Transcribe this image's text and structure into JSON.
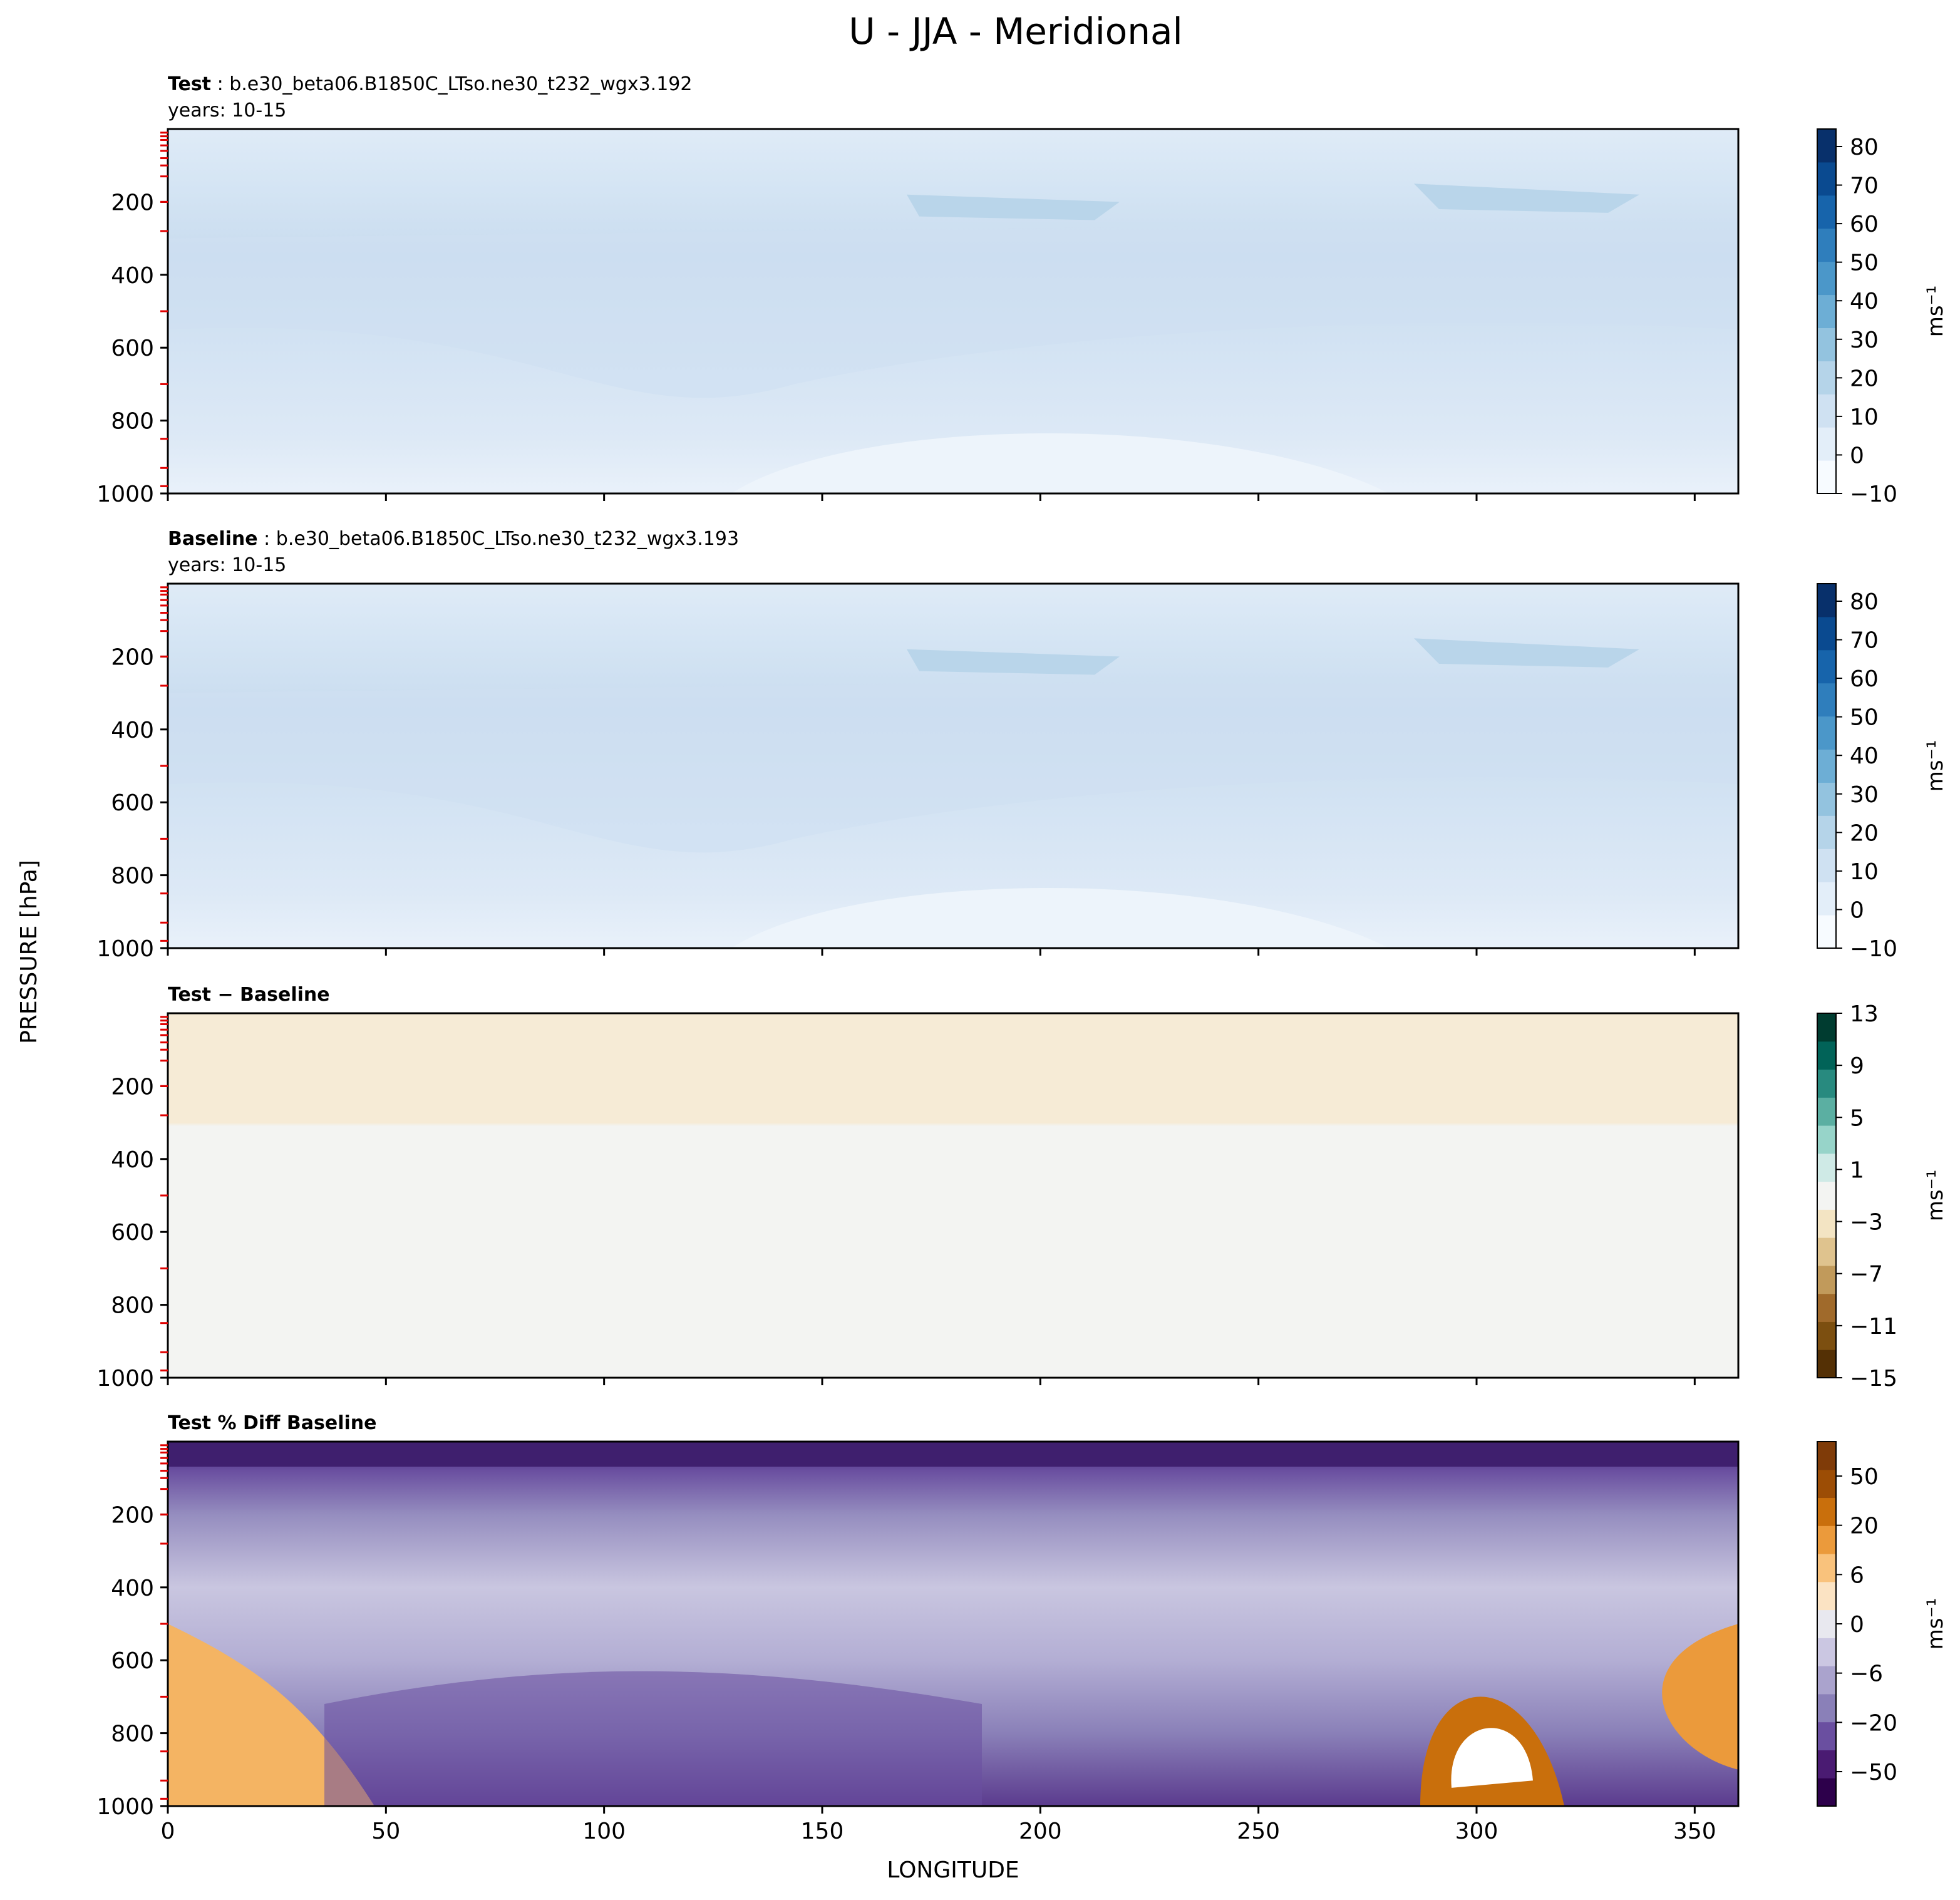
{
  "figure": {
    "title": "U - JJA - Meridional",
    "ylabel": "PRESSURE [hPa]",
    "xlabel": "LONGITUDE"
  },
  "chart_data": [
    {
      "type": "heatmap",
      "name_bold": "Test",
      "name_rest": " : b.e30_beta06.B1850C_LTso.ne30_t232_wgx3.192",
      "years": "years: 10-15",
      "xlim": [
        0,
        360
      ],
      "ylim": [
        1000,
        0
      ],
      "yticks": [
        "200",
        "400",
        "600",
        "800",
        "1000"
      ],
      "xticks": [],
      "colorbar": {
        "cmap": "Blues",
        "label": "ms⁻¹",
        "ticks": [
          "80",
          "70",
          "60",
          "50",
          "40",
          "30",
          "20",
          "10",
          "0",
          "−10"
        ]
      }
    },
    {
      "type": "heatmap",
      "name_bold": "Baseline",
      "name_rest": " : b.e30_beta06.B1850C_LTso.ne30_t232_wgx3.193",
      "years": "years: 10-15",
      "xlim": [
        0,
        360
      ],
      "ylim": [
        1000,
        0
      ],
      "yticks": [
        "200",
        "400",
        "600",
        "800",
        "1000"
      ],
      "xticks": [],
      "colorbar": {
        "cmap": "Blues",
        "label": "ms⁻¹",
        "ticks": [
          "80",
          "70",
          "60",
          "50",
          "40",
          "30",
          "20",
          "10",
          "0",
          "−10"
        ]
      }
    },
    {
      "type": "heatmap",
      "name_bold": "Test − Baseline",
      "name_rest": "",
      "years": "",
      "xlim": [
        0,
        360
      ],
      "ylim": [
        1000,
        0
      ],
      "yticks": [
        "200",
        "400",
        "600",
        "800",
        "1000"
      ],
      "xticks": [],
      "colorbar": {
        "cmap": "BrBG",
        "label": "ms⁻¹",
        "ticks": [
          "13",
          "9",
          "5",
          "1",
          "−3",
          "−7",
          "−11",
          "−15"
        ]
      }
    },
    {
      "type": "heatmap",
      "name_bold": "Test % Diff Baseline",
      "name_rest": "",
      "years": "",
      "xlim": [
        0,
        360
      ],
      "ylim": [
        1000,
        0
      ],
      "yticks": [
        "200",
        "400",
        "600",
        "800",
        "1000"
      ],
      "xticks": [
        "0",
        "50",
        "100",
        "150",
        "200",
        "250",
        "300",
        "350"
      ],
      "colorbar": {
        "cmap": "PuOr",
        "label": "ms⁻¹",
        "ticks": [
          "50",
          "20",
          "6",
          "0",
          "−6",
          "−20",
          "−50"
        ]
      }
    }
  ]
}
